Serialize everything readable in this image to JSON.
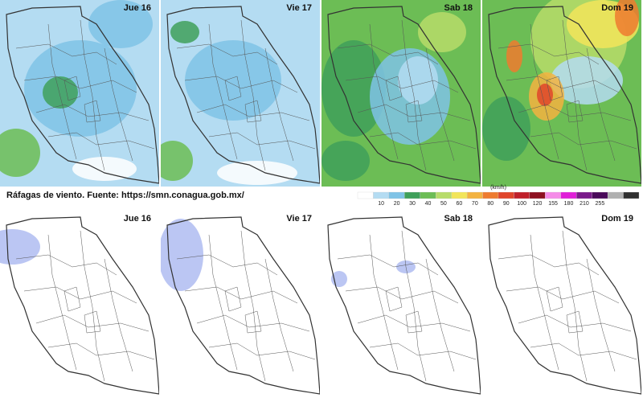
{
  "top_panels": [
    "Jue 16",
    "Vie 17",
    "Sab 18",
    "Dom 19"
  ],
  "bottom_panels": [
    "Jue 16",
    "Vie 17",
    "Sab 18",
    "Dom 19"
  ],
  "caption": "Ráfagas de viento.  Fuente: https://smn.conagua.gob.mx/",
  "legend": {
    "unit": "(km/h)",
    "ticks": [
      10,
      20,
      30,
      40,
      50,
      60,
      70,
      80,
      90,
      100,
      120,
      155,
      180,
      210,
      255
    ],
    "colors": [
      "#ffffff",
      "#b4dcf2",
      "#7fc3e6",
      "#3fa05a",
      "#6cbd55",
      "#b7dc6a",
      "#f2e55a",
      "#f3b341",
      "#ee7b2f",
      "#e0452a",
      "#c0202a",
      "#8e1020",
      "#f58ce8",
      "#e020d8",
      "#7a1a8a",
      "#4a0a5a",
      "#b0b0b0",
      "#303030"
    ]
  }
}
